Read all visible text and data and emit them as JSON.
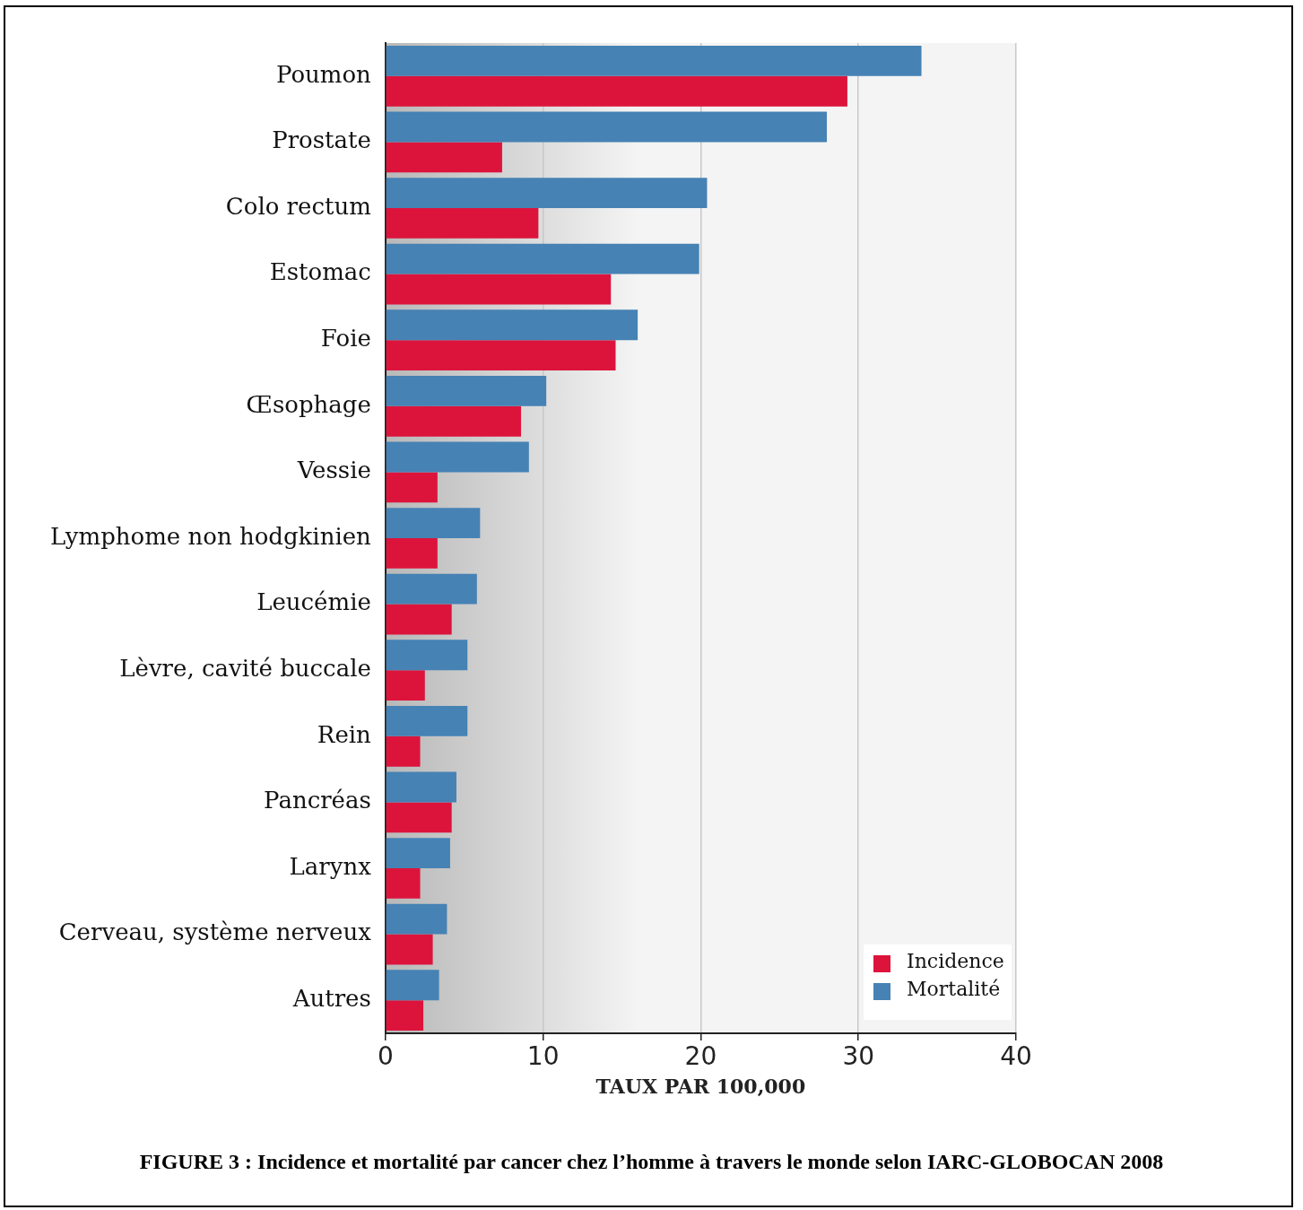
{
  "chart_data": {
    "type": "bar",
    "orientation": "horizontal",
    "xlabel": "TAUX PAR 100,000",
    "categories": [
      "Poumon",
      "Prostate",
      "Colo rectum",
      "Estomac",
      "Foie",
      "Œsophage",
      "Vessie",
      "Lymphome non hodgkinien",
      "Leucémie",
      "Lèvre, cavité buccale",
      "Rein",
      "Pancréas",
      "Larynx",
      "Cerveau, système nerveux",
      "Autres"
    ],
    "series": [
      {
        "name": "Mortalité",
        "color": "#4682b4",
        "values": [
          34.0,
          28.0,
          20.4,
          19.9,
          16.0,
          10.2,
          9.1,
          6.0,
          5.8,
          5.2,
          5.2,
          4.5,
          4.1,
          3.9,
          3.4
        ]
      },
      {
        "name": "Incidence",
        "color": "#dc143c",
        "values": [
          29.3,
          7.4,
          9.7,
          14.3,
          14.6,
          8.6,
          3.3,
          3.3,
          4.2,
          2.5,
          2.2,
          4.2,
          2.2,
          3.0,
          2.4
        ]
      }
    ],
    "xlim": [
      0,
      40
    ],
    "xticks": [
      0,
      10,
      20,
      30,
      40
    ],
    "grid": "x",
    "legend": "bottom right",
    "annotations": [
      "FIGURE 3 : Incidence et mortalité par cancer chez l’homme à travers le monde selon IARC-GLOBOCAN 2008"
    ]
  }
}
